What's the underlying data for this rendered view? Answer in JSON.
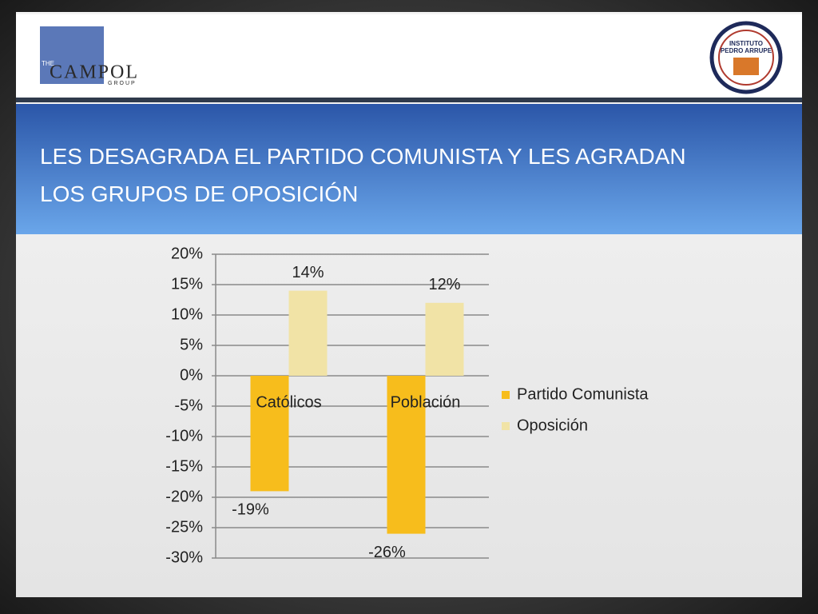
{
  "logos": {
    "left": {
      "top": "THE",
      "main": "CAMPOL",
      "bottom": "GROUP"
    },
    "right": {
      "line1": "INSTITUTO",
      "line2": "PEDRO ARRUPE"
    }
  },
  "chart_data": {
    "type": "bar",
    "title": "LES DESAGRADA EL PARTIDO COMUNISTA Y LES AGRADAN LOS GRUPOS DE OPOSICIÓN",
    "categories": [
      "Católicos",
      "Población"
    ],
    "series": [
      {
        "name": "Partido Comunista",
        "color": "#f7bd1c",
        "values": [
          -19,
          -26
        ],
        "value_labels": [
          "-19%",
          "-26%"
        ]
      },
      {
        "name": "Oposición",
        "color": "#f1e3a6",
        "values": [
          14,
          12
        ],
        "value_labels": [
          "14%",
          "12%"
        ]
      }
    ],
    "ylim": [
      -30,
      20
    ],
    "yticks": [
      {
        "value": 20,
        "label": "20%"
      },
      {
        "value": 15,
        "label": "15%"
      },
      {
        "value": 10,
        "label": "10%"
      },
      {
        "value": 5,
        "label": "5%"
      },
      {
        "value": 0,
        "label": "0%"
      },
      {
        "value": -5,
        "label": "-5%"
      },
      {
        "value": -10,
        "label": "-10%"
      },
      {
        "value": -15,
        "label": "-15%"
      },
      {
        "value": -20,
        "label": "-20%"
      },
      {
        "value": -25,
        "label": "-25%"
      },
      {
        "value": -30,
        "label": "-30%"
      }
    ],
    "grid": true,
    "legend": "right"
  }
}
